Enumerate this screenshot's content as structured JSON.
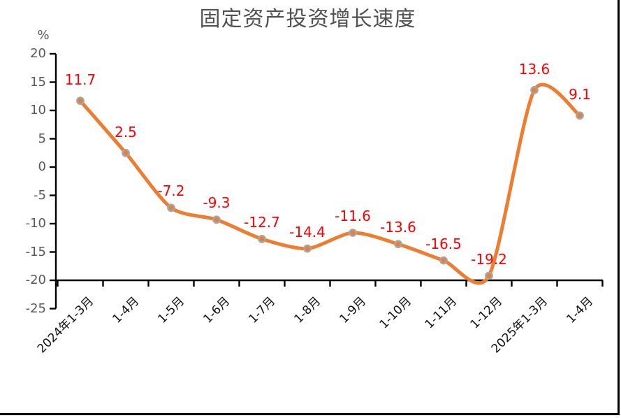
{
  "chart_data": {
    "type": "line",
    "title": "固定资产投资增长速度",
    "unit_label": "%",
    "categories": [
      "2024年1-3月",
      "1-4月",
      "1-5月",
      "1-6月",
      "1-7月",
      "1-8月",
      "1-9月",
      "1-10月",
      "1-11月",
      "1-12月",
      "2025年1-3月",
      "1-4月"
    ],
    "series": [
      {
        "name": "固定资产投资增长速度",
        "values": [
          11.7,
          2.5,
          -7.2,
          -9.3,
          -12.7,
          -14.4,
          -11.6,
          -13.6,
          -16.5,
          -19.2,
          13.6,
          9.1
        ]
      }
    ],
    "data_labels": [
      "11.7",
      "2.5",
      "-7.2",
      "-9.3",
      "-12.7",
      "-14.4",
      "-11.6",
      "-13.6",
      "-16.5",
      "-19.2",
      "13.6",
      "9.1"
    ],
    "yticks": [
      20,
      15,
      10,
      5,
      0,
      -5,
      -10,
      -15,
      -20,
      -25
    ],
    "ylim": [
      -25,
      20
    ],
    "category_axis_cross": -20,
    "smoothed_line": true,
    "grid": false,
    "legend": "none",
    "colors": {
      "line": "#ED7D31",
      "marker_fill": "#ED7D31",
      "marker_ring": "#A6A6A6",
      "data_label": "#FE0000",
      "tick_label": "#595959",
      "category_label": "#111111",
      "axis": "#000000",
      "title": "#515151",
      "background": "#FFFFFF",
      "frame_border": "#000000"
    }
  }
}
